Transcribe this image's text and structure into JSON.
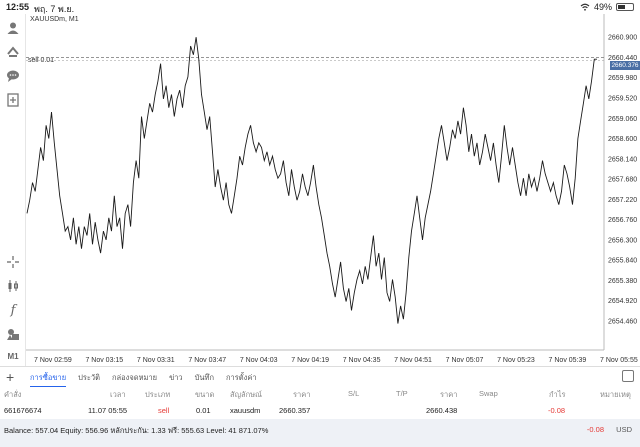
{
  "status": {
    "time": "12:55",
    "date": "พฤ. 7 พ.ย.",
    "battery": "49%",
    "battery_level": 0.49
  },
  "chart": {
    "symbol": "XAUUSDm, M1",
    "sell_line_label": "sell 0.01",
    "current_price_tag": "2660.376",
    "up_color": "#1a1a1a"
  },
  "tools": [
    "person-icon",
    "share-icon",
    "chat-icon",
    "add-document-icon",
    "crosshair-icon",
    "candles-icon",
    "function-icon",
    "objects-icon",
    "timeframe-label"
  ],
  "timeframe": "M1",
  "chart_data": {
    "type": "line",
    "title": "",
    "xlabel": "",
    "ylabel": "",
    "ylim": [
      2653.8,
      2661.2
    ],
    "y_ticks": [
      "2660.900",
      "2660.440",
      "2659.980",
      "2659.520",
      "2659.060",
      "2658.600",
      "2658.140",
      "2657.680",
      "2657.220",
      "2656.760",
      "2656.300",
      "2655.840",
      "2655.380",
      "2654.920",
      "2654.460"
    ],
    "x_ticks": [
      "7 Nov 02:59",
      "7 Nov 03:15",
      "7 Nov 03:31",
      "7 Nov 03:47",
      "7 Nov 04:03",
      "7 Nov 04:19",
      "7 Nov 04:35",
      "7 Nov 04:51",
      "7 Nov 05:07",
      "7 Nov 05:23",
      "7 Nov 05:39",
      "7 Nov 05:55"
    ],
    "sell_level": 2660.438,
    "values": [
      2656.9,
      2657.2,
      2657.6,
      2657.4,
      2657.9,
      2658.4,
      2658.1,
      2658.9,
      2658.6,
      2659.2,
      2658.5,
      2657.9,
      2657.3,
      2656.9,
      2656.5,
      2656.6,
      2656.3,
      2656.8,
      2656.2,
      2656.6,
      2656.1,
      2656.6,
      2656.4,
      2656.9,
      2656.2,
      2656.7,
      2656.3,
      2656.0,
      2656.5,
      2656.3,
      2656.8,
      2656.5,
      2657.3,
      2656.6,
      2656.8,
      2656.1,
      2656.9,
      2657.1,
      2656.6,
      2657.6,
      2658.1,
      2657.7,
      2659.1,
      2658.6,
      2659.0,
      2659.4,
      2659.2,
      2659.6,
      2659.9,
      2660.3,
      2659.5,
      2659.8,
      2659.3,
      2659.6,
      2659.1,
      2659.5,
      2659.7,
      2659.3,
      2659.8,
      2660.0,
      2660.7,
      2660.5,
      2660.9,
      2660.4,
      2659.6,
      2659.2,
      2658.8,
      2659.1,
      2658.3,
      2657.5,
      2657.9,
      2657.5,
      2657.2,
      2657.6,
      2657.1,
      2656.9,
      2657.3,
      2657.7,
      2658.2,
      2658.0,
      2658.4,
      2658.7,
      2658.9,
      2658.5,
      2658.3,
      2658.5,
      2658.4,
      2658.1,
      2658.3,
      2658.0,
      2658.2,
      2657.9,
      2657.7,
      2657.8,
      2658.1,
      2657.6,
      2657.3,
      2657.9,
      2657.5,
      2657.2,
      2657.4,
      2657.8,
      2657.5,
      2657.3,
      2657.6,
      2658.0,
      2657.5,
      2657.1,
      2656.8,
      2656.4,
      2656.0,
      2655.7,
      2655.3,
      2655.0,
      2655.4,
      2655.8,
      2655.2,
      2654.9,
      2655.2,
      2654.7,
      2655.1,
      2655.4,
      2655.6,
      2655.3,
      2655.7,
      2655.4,
      2655.9,
      2656.4,
      2655.7,
      2656.0,
      2655.4,
      2655.9,
      2655.1,
      2654.9,
      2655.4,
      2655.0,
      2654.4,
      2654.8,
      2654.5,
      2655.1,
      2655.9,
      2656.5,
      2656.9,
      2657.3,
      2656.8,
      2656.3,
      2656.8,
      2657.1,
      2657.4,
      2657.8,
      2658.2,
      2658.6,
      2658.9,
      2658.5,
      2658.1,
      2658.4,
      2658.8,
      2658.6,
      2659.0,
      2658.7,
      2659.3,
      2658.9,
      2658.3,
      2658.7,
      2658.2,
      2658.5,
      2658.0,
      2658.3,
      2658.7,
      2658.4,
      2658.1,
      2658.5,
      2658.0,
      2657.6,
      2658.2,
      2658.9,
      2658.4,
      2658.0,
      2658.4,
      2658.0,
      2657.6,
      2657.3,
      2657.7,
      2657.3,
      2657.8,
      2657.5,
      2657.7,
      2657.4,
      2657.7,
      2658.1,
      2657.8,
      2657.6,
      2657.4,
      2657.6,
      2657.3,
      2657.1,
      2657.4,
      2658.0,
      2657.8,
      2657.5,
      2657.1,
      2657.7,
      2658.6,
      2659.0,
      2659.4,
      2659.8,
      2659.5,
      2659.9,
      2660.4,
      2660.4
    ]
  },
  "bottom": {
    "tabs": [
      "การซื้อขาย",
      "ประวัติ",
      "กล่องจดหมาย",
      "ข่าว",
      "บันทึก",
      "การตั้งค่า"
    ],
    "active_tab": 0
  },
  "table": {
    "headers": [
      "คำสั่ง",
      "เวลา",
      "ประเภท",
      "ขนาด",
      "สัญลักษณ์",
      "ราคา",
      "S/L",
      "T/P",
      "ราคา",
      "Swap",
      "กำไร",
      "หมายเหตุ"
    ],
    "row": {
      "order": "661676674",
      "time": "11.07 05:55",
      "type": "sell",
      "volume": "0.01",
      "symbol": "xauusdm",
      "open_price": "2660.357",
      "sl": "",
      "tp": "",
      "current_price": "2660.438",
      "swap": "",
      "profit": "-0.08",
      "comment": ""
    }
  },
  "balance": {
    "text": "Balance: 557.04 Equity: 556.96 หลักประกัน: 1.33 ฟรี: 555.63 Level: 41 871.07%",
    "total": "-0.08",
    "currency": "USD"
  }
}
